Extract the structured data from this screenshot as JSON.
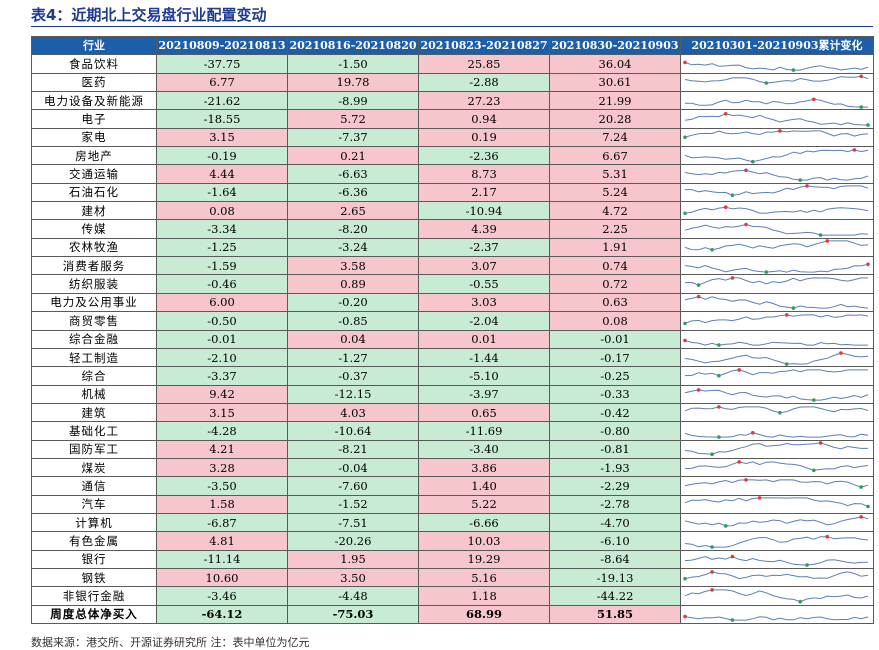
{
  "title": "表4：近期北上交易盘行业配置变动",
  "headers": [
    "行业",
    "20210809-20210813",
    "20210816-20210820",
    "20210823-20210827",
    "20210830-20210903",
    "20210301-20210903累计变化"
  ],
  "rows": [
    {
      "name": "食品饮料",
      "v": [
        "-37.75",
        "-1.50",
        "25.85",
        "36.04"
      ]
    },
    {
      "name": "医药",
      "v": [
        "6.77",
        "19.78",
        "-2.88",
        "30.61"
      ]
    },
    {
      "name": "电力设备及新能源",
      "v": [
        "-21.62",
        "-8.99",
        "27.23",
        "21.99"
      ]
    },
    {
      "name": "电子",
      "v": [
        "-18.55",
        "5.72",
        "0.94",
        "20.28"
      ]
    },
    {
      "name": "家电",
      "v": [
        "3.15",
        "-7.37",
        "0.19",
        "7.24"
      ]
    },
    {
      "name": "房地产",
      "v": [
        "-0.19",
        "0.21",
        "-2.36",
        "6.67"
      ]
    },
    {
      "name": "交通运输",
      "v": [
        "4.44",
        "-6.63",
        "8.73",
        "5.31"
      ]
    },
    {
      "name": "石油石化",
      "v": [
        "-1.64",
        "-6.36",
        "2.17",
        "5.24"
      ]
    },
    {
      "name": "建材",
      "v": [
        "0.08",
        "2.65",
        "-10.94",
        "4.72"
      ]
    },
    {
      "name": "传媒",
      "v": [
        "-3.34",
        "-8.20",
        "4.39",
        "2.25"
      ]
    },
    {
      "name": "农林牧渔",
      "v": [
        "-1.25",
        "-3.24",
        "-2.37",
        "1.91"
      ]
    },
    {
      "name": "消费者服务",
      "v": [
        "-1.59",
        "3.58",
        "3.07",
        "0.74"
      ]
    },
    {
      "name": "纺织服装",
      "v": [
        "-0.46",
        "0.89",
        "-0.55",
        "0.72"
      ]
    },
    {
      "name": "电力及公用事业",
      "v": [
        "6.00",
        "-0.20",
        "3.03",
        "0.63"
      ]
    },
    {
      "name": "商贸零售",
      "v": [
        "-0.50",
        "-0.85",
        "-2.04",
        "0.08"
      ]
    },
    {
      "name": "综合金融",
      "v": [
        "-0.01",
        "0.04",
        "0.01",
        "-0.01"
      ]
    },
    {
      "name": "轻工制造",
      "v": [
        "-2.10",
        "-1.27",
        "-1.44",
        "-0.17"
      ]
    },
    {
      "name": "综合",
      "v": [
        "-3.37",
        "-0.37",
        "-5.10",
        "-0.25"
      ]
    },
    {
      "name": "机械",
      "v": [
        "9.42",
        "-12.15",
        "-3.97",
        "-0.33"
      ]
    },
    {
      "name": "建筑",
      "v": [
        "3.15",
        "4.03",
        "0.65",
        "-0.42"
      ]
    },
    {
      "name": "基础化工",
      "v": [
        "-4.28",
        "-10.64",
        "-11.69",
        "-0.80"
      ]
    },
    {
      "name": "国防军工",
      "v": [
        "4.21",
        "-8.21",
        "-3.40",
        "-0.81"
      ]
    },
    {
      "name": "煤炭",
      "v": [
        "3.28",
        "-0.04",
        "3.86",
        "-1.93"
      ]
    },
    {
      "name": "通信",
      "v": [
        "-3.50",
        "-7.60",
        "1.40",
        "-2.29"
      ]
    },
    {
      "name": "汽车",
      "v": [
        "1.58",
        "-1.52",
        "5.22",
        "-2.78"
      ]
    },
    {
      "name": "计算机",
      "v": [
        "-6.87",
        "-7.51",
        "-6.66",
        "-4.70"
      ]
    },
    {
      "name": "有色金属",
      "v": [
        "4.81",
        "-20.26",
        "10.03",
        "-6.10"
      ]
    },
    {
      "name": "银行",
      "v": [
        "-11.14",
        "1.95",
        "19.29",
        "-8.64"
      ]
    },
    {
      "name": "钢铁",
      "v": [
        "10.60",
        "3.50",
        "5.16",
        "-19.13"
      ]
    },
    {
      "name": "非银行金融",
      "v": [
        "-3.46",
        "-4.48",
        "1.18",
        "-44.22"
      ]
    }
  ],
  "total": {
    "name": "周度总体净买入",
    "v": [
      "-64.12",
      "-75.03",
      "68.99",
      "51.85"
    ]
  },
  "colors": {
    "header_bg": "#1d5ea8",
    "positive_bg": "#f7c5cc",
    "negative_bg": "#c7ecd3",
    "spark_line": "#5b7fb8",
    "spark_max": "#e0393e",
    "spark_min": "#2ca05a"
  },
  "source": "数据来源：港交所、开源证券研究所 注：表中单位为亿元"
}
